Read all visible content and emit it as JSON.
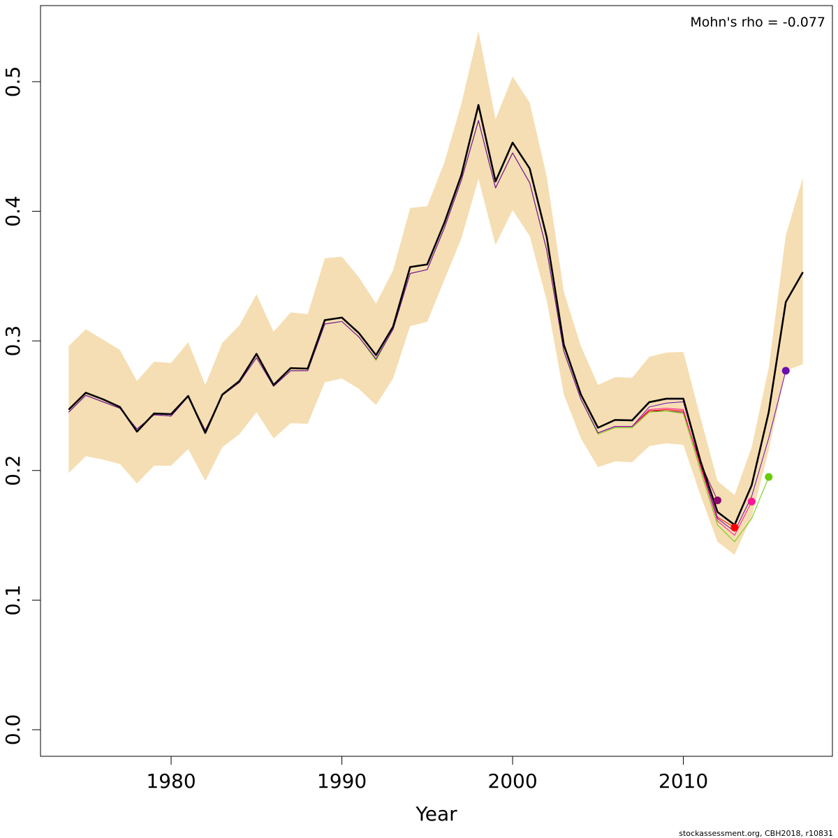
{
  "chart_data": {
    "type": "line",
    "annotation": "Mohn's rho = -0.077",
    "x_label": "Year",
    "footer": "stockassessment.org, CBH2018, r10831",
    "x": [
      1974,
      1975,
      1976,
      1977,
      1978,
      1979,
      1980,
      1981,
      1982,
      1983,
      1984,
      1985,
      1986,
      1987,
      1988,
      1989,
      1990,
      1991,
      1992,
      1993,
      1994,
      1995,
      1996,
      1997,
      1998,
      1999,
      2000,
      2001,
      2002,
      2003,
      2004,
      2005,
      2006,
      2007,
      2008,
      2009,
      2010,
      2011,
      2012,
      2013,
      2014,
      2015,
      2016,
      2017
    ],
    "band": {
      "color": "#f5deb3",
      "upper": [
        0.296,
        0.309,
        0.301,
        0.293,
        0.269,
        0.284,
        0.283,
        0.299,
        0.266,
        0.2985,
        0.312,
        0.336,
        0.307,
        0.322,
        0.3206,
        0.3637,
        0.365,
        0.349,
        0.3287,
        0.3545,
        0.4025,
        0.404,
        0.4375,
        0.483,
        0.539,
        0.471,
        0.504,
        0.484,
        0.4267,
        0.338,
        0.296,
        0.266,
        0.272,
        0.2716,
        0.2877,
        0.291,
        0.2915,
        0.241,
        0.192,
        0.181,
        0.218,
        0.279,
        0.3815,
        0.426
      ],
      "lower": [
        0.198,
        0.211,
        0.2085,
        0.205,
        0.19,
        0.2037,
        0.2037,
        0.2166,
        0.192,
        0.218,
        0.228,
        0.245,
        0.2247,
        0.2365,
        0.236,
        0.268,
        0.271,
        0.263,
        0.2505,
        0.271,
        0.3114,
        0.3147,
        0.347,
        0.379,
        0.425,
        0.374,
        0.401,
        0.381,
        0.331,
        0.2586,
        0.2247,
        0.2026,
        0.207,
        0.2064,
        0.2188,
        0.221,
        0.2198,
        0.181,
        0.145,
        0.135,
        0.1643,
        0.2155,
        0.277,
        0.282
      ]
    },
    "series": [
      {
        "color": "#000000",
        "values": [
          0.247,
          0.26,
          0.255,
          0.249,
          0.23,
          0.244,
          0.2435,
          0.2575,
          0.229,
          0.2586,
          0.269,
          0.29,
          0.266,
          0.279,
          0.2786,
          0.316,
          0.318,
          0.306,
          0.289,
          0.311,
          0.357,
          0.359,
          0.391,
          0.428,
          0.482,
          0.423,
          0.453,
          0.433,
          0.38,
          0.297,
          0.2586,
          0.233,
          0.239,
          0.2387,
          0.2527,
          0.2554,
          0.2554,
          0.2074,
          0.168,
          0.158,
          0.1886,
          0.245,
          0.33,
          0.353
        ]
      },
      {
        "color": "#6a0dad",
        "last_point": true,
        "values": [
          0.245,
          0.258,
          0.253,
          0.248,
          0.232,
          0.243,
          0.242,
          0.257,
          0.231,
          0.258,
          0.268,
          0.287,
          0.265,
          0.277,
          0.277,
          0.313,
          0.315,
          0.303,
          0.286,
          0.309,
          0.352,
          0.355,
          0.387,
          0.424,
          0.47,
          0.418,
          0.445,
          0.422,
          0.37,
          0.292,
          0.255,
          0.229,
          0.234,
          0.234,
          0.249,
          0.252,
          0.253,
          0.206,
          0.163,
          0.153,
          0.18,
          0.225,
          0.277,
          null
        ]
      },
      {
        "color": "#66cc00",
        "last_point": true,
        "values": [
          0.245,
          0.258,
          0.253,
          0.248,
          0.232,
          0.243,
          0.242,
          0.257,
          0.231,
          0.258,
          0.268,
          0.287,
          0.265,
          0.277,
          0.277,
          0.313,
          0.315,
          0.303,
          0.285,
          0.309,
          0.352,
          0.355,
          0.387,
          0.424,
          0.47,
          0.418,
          0.445,
          0.422,
          0.37,
          0.292,
          0.255,
          0.228,
          0.233,
          0.233,
          0.245,
          0.246,
          0.244,
          0.2,
          0.158,
          0.145,
          0.163,
          0.195,
          null,
          null
        ]
      },
      {
        "color": "#ff1493",
        "last_point": true,
        "values": [
          0.245,
          0.258,
          0.253,
          0.248,
          0.232,
          0.243,
          0.242,
          0.257,
          0.231,
          0.258,
          0.268,
          0.287,
          0.265,
          0.277,
          0.277,
          0.313,
          0.315,
          0.303,
          0.286,
          0.309,
          0.352,
          0.355,
          0.387,
          0.424,
          0.47,
          0.418,
          0.445,
          0.422,
          0.37,
          0.292,
          0.255,
          0.229,
          0.234,
          0.234,
          0.247,
          0.248,
          0.247,
          0.203,
          0.161,
          0.15,
          0.176,
          null,
          null,
          null
        ]
      },
      {
        "color": "#ff0000",
        "last_point": true,
        "values": [
          0.245,
          0.258,
          0.253,
          0.248,
          0.232,
          0.243,
          0.242,
          0.257,
          0.231,
          0.258,
          0.268,
          0.287,
          0.265,
          0.277,
          0.277,
          0.313,
          0.315,
          0.303,
          0.286,
          0.309,
          0.352,
          0.355,
          0.387,
          0.424,
          0.47,
          0.418,
          0.445,
          0.422,
          0.37,
          0.292,
          0.255,
          0.229,
          0.234,
          0.234,
          0.246,
          0.247,
          0.246,
          0.204,
          0.164,
          0.156,
          null,
          null,
          null,
          null
        ]
      },
      {
        "color": "#8b0a6b",
        "last_point": true,
        "values": [
          0.245,
          0.258,
          0.253,
          0.248,
          0.232,
          0.243,
          0.242,
          0.257,
          0.231,
          0.258,
          0.268,
          0.287,
          0.265,
          0.277,
          0.277,
          0.313,
          0.315,
          0.303,
          0.286,
          0.309,
          0.352,
          0.355,
          0.387,
          0.424,
          0.47,
          0.418,
          0.445,
          0.422,
          0.37,
          0.292,
          0.255,
          0.229,
          0.234,
          0.234,
          0.246,
          0.246,
          0.245,
          0.206,
          0.177,
          null,
          null,
          null,
          null,
          null
        ]
      }
    ],
    "xlim": [
      1972.35,
      2018.73
    ],
    "ylim": [
      -0.0205,
      0.5587
    ],
    "xticks": [
      1980,
      1990,
      2000,
      2010
    ],
    "yticks": [
      {
        "value": 0,
        "label": "0.0"
      },
      0.1,
      0.2,
      0.3,
      0.4,
      0.5
    ]
  }
}
